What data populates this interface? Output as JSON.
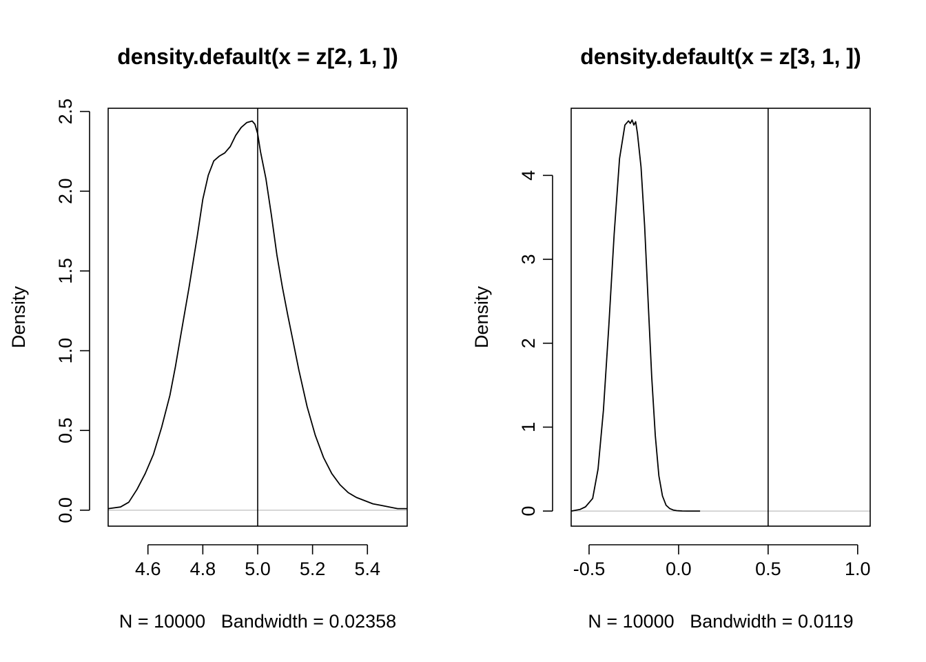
{
  "chart_data": [
    {
      "type": "line",
      "title": "density.default(x = z[2, 1, ])",
      "xlabel": "N = 10000   Bandwidth = 0.02358",
      "ylabel": "Density",
      "xlim": [
        4.455,
        5.545
      ],
      "ylim": [
        -0.1,
        2.52
      ],
      "xticks": [
        4.6,
        4.8,
        5.0,
        5.2,
        5.4
      ],
      "xtick_labels": [
        "4.6",
        "4.8",
        "5.0",
        "5.2",
        "5.4"
      ],
      "yticks": [
        0.0,
        0.5,
        1.0,
        1.5,
        2.0,
        2.5
      ],
      "ytick_labels": [
        "0.0",
        "0.5",
        "1.0",
        "1.5",
        "2.0",
        "2.5"
      ],
      "reference_vline": 5.0,
      "zero_line": true,
      "series": [
        {
          "x": [
            4.455,
            4.5,
            4.53,
            4.56,
            4.59,
            4.62,
            4.65,
            4.68,
            4.7,
            4.72,
            4.75,
            4.78,
            4.8,
            4.82,
            4.84,
            4.86,
            4.88,
            4.9,
            4.92,
            4.94,
            4.96,
            4.98,
            4.99,
            5.0,
            5.01,
            5.03,
            5.05,
            5.07,
            5.09,
            5.11,
            5.13,
            5.15,
            5.18,
            5.21,
            5.24,
            5.27,
            5.3,
            5.33,
            5.36,
            5.39,
            5.42,
            5.45,
            5.48,
            5.51,
            5.545
          ],
          "y": [
            0.01,
            0.02,
            0.05,
            0.13,
            0.23,
            0.35,
            0.52,
            0.72,
            0.9,
            1.1,
            1.4,
            1.72,
            1.95,
            2.1,
            2.19,
            2.22,
            2.24,
            2.28,
            2.35,
            2.4,
            2.43,
            2.44,
            2.42,
            2.36,
            2.25,
            2.08,
            1.85,
            1.6,
            1.4,
            1.22,
            1.05,
            0.88,
            0.65,
            0.47,
            0.33,
            0.23,
            0.16,
            0.11,
            0.08,
            0.06,
            0.04,
            0.03,
            0.02,
            0.01,
            0.01
          ]
        }
      ]
    },
    {
      "type": "line",
      "title": "density.default(x = z[3, 1, ])",
      "xlabel": "N = 10000   Bandwidth = 0.0119",
      "ylabel": "Density",
      "xlim": [
        -0.6,
        1.07
      ],
      "ylim": [
        -0.18,
        4.8
      ],
      "xticks": [
        -0.5,
        0.0,
        0.5,
        1.0
      ],
      "xtick_labels": [
        "-0.5",
        "0.0",
        "0.5",
        "1.0"
      ],
      "yticks": [
        0,
        1,
        2,
        3,
        4
      ],
      "ytick_labels": [
        "0",
        "1",
        "2",
        "3",
        "4"
      ],
      "reference_vline": 0.5,
      "zero_line": true,
      "series": [
        {
          "x": [
            -0.6,
            -0.55,
            -0.52,
            -0.48,
            -0.45,
            -0.42,
            -0.39,
            -0.36,
            -0.33,
            -0.3,
            -0.28,
            -0.27,
            -0.26,
            -0.25,
            -0.24,
            -0.23,
            -0.21,
            -0.19,
            -0.17,
            -0.15,
            -0.13,
            -0.11,
            -0.09,
            -0.07,
            -0.05,
            -0.03,
            -0.01,
            0.0,
            0.02,
            0.05,
            0.08,
            0.12
          ],
          "y": [
            0.0,
            0.02,
            0.05,
            0.15,
            0.5,
            1.2,
            2.2,
            3.3,
            4.2,
            4.6,
            4.65,
            4.62,
            4.66,
            4.6,
            4.64,
            4.5,
            4.1,
            3.4,
            2.5,
            1.6,
            0.9,
            0.42,
            0.18,
            0.07,
            0.03,
            0.012,
            0.005,
            0.003,
            0.001,
            0.0,
            0.0,
            0.0
          ]
        }
      ]
    }
  ]
}
